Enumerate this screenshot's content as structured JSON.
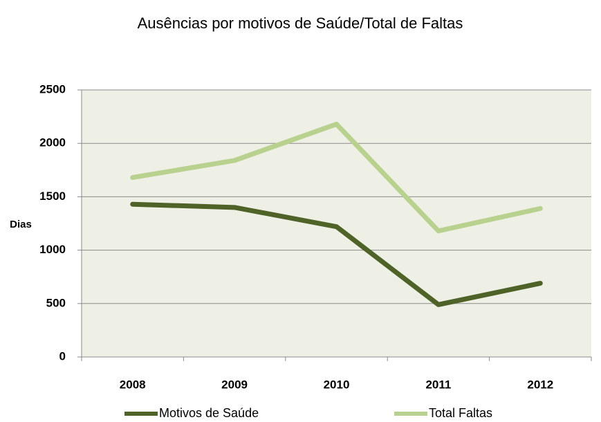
{
  "chart_data": {
    "type": "line",
    "title": "Ausências por motivos de Saúde/Total de Faltas",
    "y_label": "Dias",
    "categories": [
      "2008",
      "2009",
      "2010",
      "2011",
      "2012"
    ],
    "series": [
      {
        "name": "Motivos de Saúde",
        "color": "#4f6228",
        "values": [
          1430,
          1400,
          1220,
          490,
          690
        ]
      },
      {
        "name": "Total Faltas",
        "color": "#b9d18f",
        "values": [
          1680,
          1840,
          2180,
          1180,
          1390
        ]
      }
    ],
    "ylim": [
      0,
      2500
    ],
    "yticks": [
      0,
      500,
      1000,
      1500,
      2000,
      2500
    ],
    "grid": true,
    "legend": "bottom"
  }
}
